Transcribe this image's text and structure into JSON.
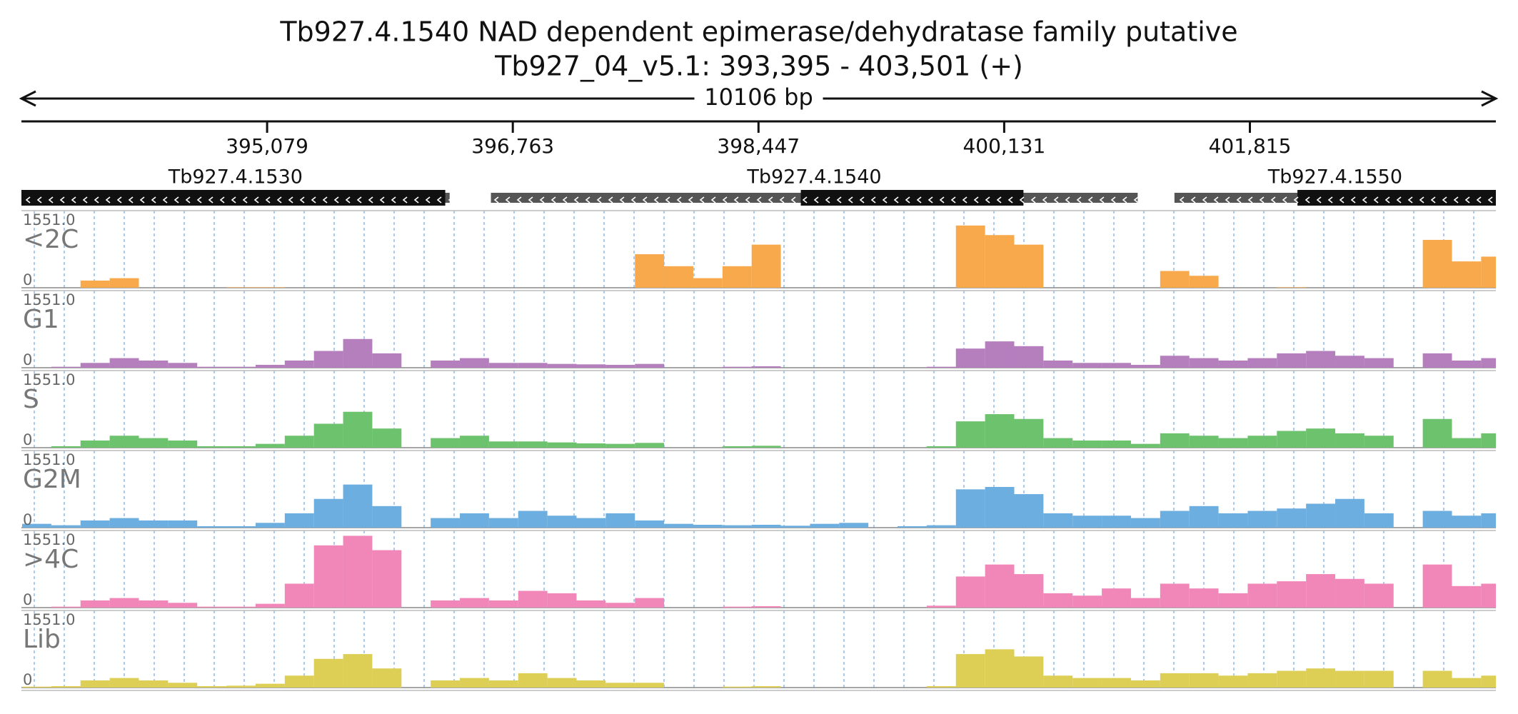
{
  "chart_data": {
    "type": "coverage",
    "title": "Tb927.4.1540  NAD dependent epimerase/dehydratase family  putative",
    "subtitle": "Tb927_04_v5.1: 393,395 - 403,501 (+)",
    "span_label": "10106 bp",
    "xlim": [
      393395,
      403501
    ],
    "xticks": [
      {
        "value": 395079,
        "label": "395,079"
      },
      {
        "value": 396763,
        "label": "396,763"
      },
      {
        "value": 398447,
        "label": "398,447"
      },
      {
        "value": 400131,
        "label": "400,131"
      },
      {
        "value": 401815,
        "label": "401,815"
      }
    ],
    "genes": [
      {
        "name": "Tb927.4.1530",
        "start": 393395,
        "end": 396330,
        "cds_start": 393395,
        "cds_end": 396300,
        "strand": "-"
      },
      {
        "name": "Tb927.4.1540",
        "start": 396613,
        "end": 401046,
        "cds_start": 398737,
        "cds_end": 400263,
        "strand": "-"
      },
      {
        "name": "Tb927.4.1550",
        "start": 401298,
        "end": 403501,
        "cds_start": 402141,
        "cds_end": 403501,
        "strand": "-"
      }
    ],
    "ylim": [
      0,
      1551
    ],
    "yticks": [
      0,
      {
        "value": 1551,
        "label": "1551.0"
      }
    ],
    "x": [
      393400,
      393600,
      393800,
      394000,
      394200,
      394400,
      394600,
      394800,
      395000,
      395200,
      395400,
      395600,
      395800,
      396000,
      396200,
      396400,
      396600,
      396800,
      397000,
      397200,
      397400,
      397600,
      397800,
      398000,
      398200,
      398400,
      398600,
      398800,
      399000,
      399200,
      399400,
      399600,
      399800,
      400000,
      400200,
      400400,
      400600,
      400800,
      401000,
      401200,
      401400,
      401600,
      401800,
      402000,
      402200,
      402400,
      402600,
      402800,
      403000,
      403200,
      403400
    ],
    "series": [
      {
        "name": "<2C",
        "color": "#f7a94b",
        "values": [
          0,
          0,
          150,
          200,
          0,
          0,
          0,
          10,
          10,
          0,
          0,
          0,
          0,
          0,
          0,
          0,
          0,
          0,
          0,
          0,
          0,
          700,
          450,
          200,
          450,
          900,
          0,
          0,
          0,
          0,
          0,
          0,
          1300,
          1100,
          900,
          0,
          0,
          0,
          0,
          350,
          250,
          0,
          0,
          10,
          0,
          0,
          0,
          0,
          1000,
          550,
          650
        ]
      },
      {
        "name": "G1",
        "color": "#b57fbe",
        "values": [
          0,
          20,
          100,
          200,
          150,
          100,
          20,
          20,
          60,
          150,
          350,
          600,
          300,
          0,
          150,
          200,
          100,
          100,
          80,
          70,
          60,
          80,
          0,
          0,
          20,
          30,
          0,
          0,
          0,
          0,
          0,
          20,
          400,
          550,
          450,
          150,
          100,
          100,
          60,
          250,
          200,
          150,
          200,
          300,
          350,
          250,
          200,
          0,
          300,
          150,
          200
        ]
      },
      {
        "name": "S",
        "color": "#6dc26d",
        "values": [
          0,
          30,
          150,
          250,
          200,
          150,
          30,
          30,
          80,
          250,
          500,
          750,
          400,
          0,
          200,
          250,
          130,
          130,
          110,
          90,
          80,
          100,
          0,
          0,
          30,
          40,
          0,
          0,
          0,
          0,
          0,
          30,
          550,
          700,
          600,
          200,
          150,
          150,
          80,
          300,
          250,
          200,
          250,
          350,
          400,
          300,
          250,
          0,
          600,
          200,
          300
        ]
      },
      {
        "name": "G2M",
        "color": "#6caee0",
        "values": [
          80,
          50,
          150,
          200,
          150,
          150,
          30,
          30,
          100,
          300,
          600,
          900,
          450,
          0,
          200,
          300,
          200,
          350,
          250,
          200,
          300,
          150,
          80,
          60,
          50,
          60,
          40,
          80,
          100,
          0,
          30,
          50,
          800,
          850,
          700,
          300,
          250,
          250,
          200,
          350,
          450,
          300,
          350,
          400,
          500,
          600,
          300,
          0,
          350,
          250,
          300
        ]
      },
      {
        "name": ">4C",
        "color": "#f087b8",
        "values": [
          0,
          20,
          150,
          200,
          150,
          100,
          20,
          20,
          80,
          500,
          1300,
          1500,
          1200,
          0,
          150,
          200,
          150,
          350,
          300,
          150,
          100,
          200,
          0,
          0,
          20,
          30,
          0,
          0,
          0,
          0,
          0,
          40,
          650,
          900,
          700,
          300,
          250,
          400,
          200,
          500,
          400,
          300,
          500,
          550,
          700,
          600,
          500,
          0,
          900,
          450,
          500
        ]
      },
      {
        "name": "Lib",
        "color": "#ddcf55",
        "values": [
          20,
          30,
          150,
          200,
          150,
          100,
          30,
          40,
          80,
          250,
          600,
          700,
          400,
          0,
          150,
          200,
          150,
          300,
          200,
          150,
          100,
          100,
          0,
          0,
          20,
          30,
          0,
          0,
          0,
          0,
          0,
          30,
          700,
          800,
          650,
          250,
          200,
          200,
          150,
          300,
          300,
          250,
          300,
          350,
          400,
          350,
          350,
          0,
          350,
          200,
          250
        ]
      }
    ]
  }
}
